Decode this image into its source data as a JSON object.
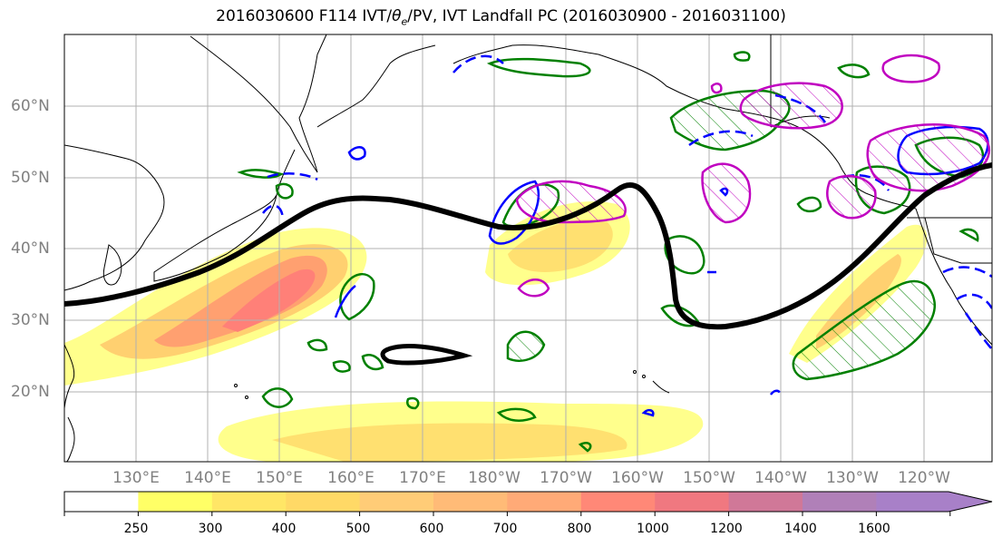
{
  "title": {
    "prefix": "2016030600 F114 IVT/",
    "theta": "θ",
    "theta_sub": "e",
    "suffix": "/PV, IVT Landfall PC (2016030900 - 2016031100)"
  },
  "map": {
    "lat_labels": [
      "60°N",
      "50°N",
      "40°N",
      "30°N",
      "20°N"
    ],
    "lon_labels": [
      "130°E",
      "140°E",
      "150°E",
      "160°E",
      "170°E",
      "180°W",
      "170°W",
      "160°W",
      "150°W",
      "140°W",
      "130°W",
      "120°W"
    ],
    "colors": {
      "coast": "#000000",
      "grid": "#b0b0b0",
      "pv_contour": "#000000",
      "theta_e_positive": "#008000",
      "theta_e_negative": "#0000ff",
      "landfall_pc": "#c000c0"
    }
  },
  "colorbar": {
    "levels": [
      "250",
      "300",
      "400",
      "500",
      "600",
      "700",
      "800",
      "1000",
      "1200",
      "1400",
      "1600"
    ],
    "colors": [
      "#ffffff",
      "#ffff66",
      "#ffe666",
      "#ffd966",
      "#ffcc77",
      "#ffbb77",
      "#ffaa77",
      "#ff8877",
      "#f07880",
      "#d07898",
      "#b080b8",
      "#a880c8"
    ],
    "extend": "max"
  }
}
